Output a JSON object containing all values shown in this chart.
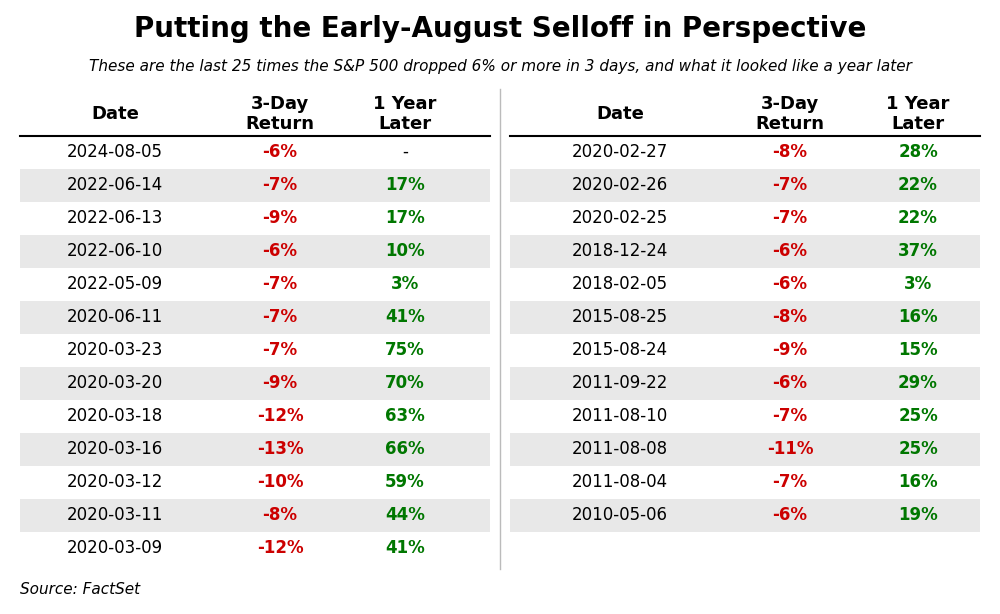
{
  "title": "Putting the Early-August Selloff in Perspective",
  "subtitle": "These are the last 25 times the S&P 500 dropped 6% or more in 3 days, and what it looked like a year later",
  "source": "Source: FactSet",
  "left_table": {
    "headers": [
      "Date",
      "3-Day\nReturn",
      "1 Year\nLater"
    ],
    "rows": [
      [
        "2024-08-05",
        "-6%",
        "-"
      ],
      [
        "2022-06-14",
        "-7%",
        "17%"
      ],
      [
        "2022-06-13",
        "-9%",
        "17%"
      ],
      [
        "2022-06-10",
        "-6%",
        "10%"
      ],
      [
        "2022-05-09",
        "-7%",
        "3%"
      ],
      [
        "2020-06-11",
        "-7%",
        "41%"
      ],
      [
        "2020-03-23",
        "-7%",
        "75%"
      ],
      [
        "2020-03-20",
        "-9%",
        "70%"
      ],
      [
        "2020-03-18",
        "-12%",
        "63%"
      ],
      [
        "2020-03-16",
        "-13%",
        "66%"
      ],
      [
        "2020-03-12",
        "-10%",
        "59%"
      ],
      [
        "2020-03-11",
        "-8%",
        "44%"
      ],
      [
        "2020-03-09",
        "-12%",
        "41%"
      ]
    ]
  },
  "right_table": {
    "headers": [
      "Date",
      "3-Day\nReturn",
      "1 Year\nLater"
    ],
    "rows": [
      [
        "2020-02-27",
        "-8%",
        "28%"
      ],
      [
        "2020-02-26",
        "-7%",
        "22%"
      ],
      [
        "2020-02-25",
        "-7%",
        "22%"
      ],
      [
        "2018-12-24",
        "-6%",
        "37%"
      ],
      [
        "2018-02-05",
        "-6%",
        "3%"
      ],
      [
        "2015-08-25",
        "-8%",
        "16%"
      ],
      [
        "2015-08-24",
        "-9%",
        "15%"
      ],
      [
        "2011-09-22",
        "-6%",
        "29%"
      ],
      [
        "2011-08-10",
        "-7%",
        "25%"
      ],
      [
        "2011-08-08",
        "-11%",
        "25%"
      ],
      [
        "2011-08-04",
        "-7%",
        "16%"
      ],
      [
        "2010-05-06",
        "-6%",
        "19%"
      ]
    ]
  },
  "bg_color": "#ffffff",
  "stripe_color": "#e8e8e8",
  "red_color": "#cc0000",
  "green_color": "#007700",
  "black_color": "#000000",
  "title_fontsize": 20,
  "subtitle_fontsize": 11,
  "header_fontsize": 13,
  "data_fontsize": 12,
  "source_fontsize": 11
}
